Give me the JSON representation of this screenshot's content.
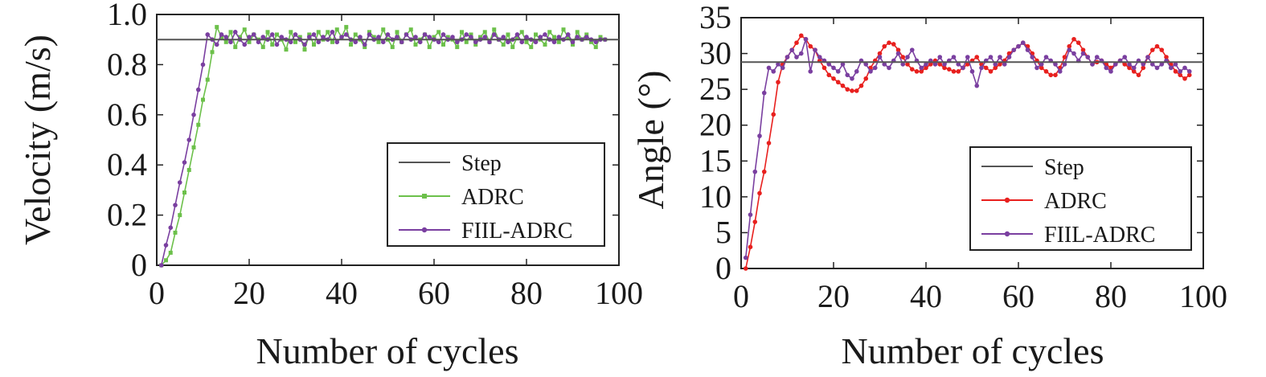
{
  "chart_data": [
    {
      "type": "line",
      "xlabel": "Number of cycles",
      "ylabel": "Velocity (m/s)",
      "xlim": [
        0,
        100
      ],
      "ylim": [
        0,
        1.0
      ],
      "xticks": [
        0,
        20,
        40,
        60,
        80,
        100
      ],
      "xtick_labels": [
        "0",
        "20",
        "40",
        "60",
        "80",
        "100"
      ],
      "yticks": [
        0,
        0.2,
        0.4,
        0.6,
        0.8,
        1.0
      ],
      "ytick_labels": [
        "0",
        "0.2",
        "0.4",
        "0.6",
        "0.8",
        "1.0"
      ],
      "grid": false,
      "legend_position": "lower-right",
      "legend": [
        "Step",
        "ADRC",
        "FIIL-ADRC"
      ],
      "series": [
        {
          "name": "Step",
          "color": "#555555",
          "marker": "none",
          "x": [
            0,
            100
          ],
          "y": [
            0.9,
            0.9
          ]
        },
        {
          "name": "ADRC",
          "color": "#6cc04a",
          "marker": "square",
          "x": [
            1,
            2,
            3,
            4,
            5,
            6,
            7,
            8,
            9,
            10,
            11,
            12,
            13,
            14,
            15,
            16,
            17,
            18,
            19,
            20,
            21,
            22,
            23,
            24,
            25,
            26,
            27,
            28,
            29,
            30,
            31,
            32,
            33,
            34,
            35,
            36,
            37,
            38,
            39,
            40,
            41,
            42,
            43,
            44,
            45,
            46,
            47,
            48,
            49,
            50,
            51,
            52,
            53,
            54,
            55,
            56,
            57,
            58,
            59,
            60,
            61,
            62,
            63,
            64,
            65,
            66,
            67,
            68,
            69,
            70,
            71,
            72,
            73,
            74,
            75,
            76,
            77,
            78,
            79,
            80,
            81,
            82,
            83,
            84,
            85,
            86,
            87,
            88,
            89,
            90,
            91,
            92,
            93,
            94,
            95,
            96,
            97
          ],
          "y": [
            0.0,
            0.02,
            0.05,
            0.13,
            0.2,
            0.29,
            0.38,
            0.47,
            0.56,
            0.66,
            0.74,
            0.85,
            0.95,
            0.91,
            0.89,
            0.93,
            0.87,
            0.91,
            0.94,
            0.89,
            0.92,
            0.9,
            0.87,
            0.93,
            0.88,
            0.92,
            0.9,
            0.86,
            0.93,
            0.89,
            0.91,
            0.86,
            0.92,
            0.88,
            0.93,
            0.9,
            0.93,
            0.89,
            0.94,
            0.91,
            0.95,
            0.88,
            0.92,
            0.9,
            0.87,
            0.93,
            0.91,
            0.89,
            0.94,
            0.9,
            0.87,
            0.93,
            0.89,
            0.92,
            0.94,
            0.88,
            0.9,
            0.92,
            0.87,
            0.91,
            0.93,
            0.88,
            0.91,
            0.9,
            0.87,
            0.93,
            0.89,
            0.92,
            0.88,
            0.91,
            0.93,
            0.89,
            0.94,
            0.9,
            0.88,
            0.92,
            0.87,
            0.91,
            0.93,
            0.89,
            0.87,
            0.92,
            0.9,
            0.88,
            0.93,
            0.91,
            0.89,
            0.94,
            0.91,
            0.88,
            0.93,
            0.9,
            0.92,
            0.89,
            0.87,
            0.91,
            0.9
          ]
        },
        {
          "name": "FIIL-ADRC",
          "color": "#7a3fa0",
          "marker": "circle",
          "x": [
            1,
            2,
            3,
            4,
            5,
            6,
            7,
            8,
            9,
            10,
            11,
            12,
            13,
            14,
            15,
            16,
            17,
            18,
            19,
            20,
            21,
            22,
            23,
            24,
            25,
            26,
            27,
            28,
            29,
            30,
            31,
            32,
            33,
            34,
            35,
            36,
            37,
            38,
            39,
            40,
            41,
            42,
            43,
            44,
            45,
            46,
            47,
            48,
            49,
            50,
            51,
            52,
            53,
            54,
            55,
            56,
            57,
            58,
            59,
            60,
            61,
            62,
            63,
            64,
            65,
            66,
            67,
            68,
            69,
            70,
            71,
            72,
            73,
            74,
            75,
            76,
            77,
            78,
            79,
            80,
            81,
            82,
            83,
            84,
            85,
            86,
            87,
            88,
            89,
            90,
            91,
            92,
            93,
            94,
            95,
            96,
            97
          ],
          "y": [
            0.0,
            0.08,
            0.15,
            0.24,
            0.33,
            0.41,
            0.5,
            0.6,
            0.7,
            0.8,
            0.92,
            0.9,
            0.88,
            0.92,
            0.91,
            0.89,
            0.93,
            0.9,
            0.88,
            0.91,
            0.92,
            0.89,
            0.91,
            0.9,
            0.92,
            0.88,
            0.91,
            0.9,
            0.89,
            0.92,
            0.9,
            0.88,
            0.91,
            0.92,
            0.89,
            0.91,
            0.9,
            0.93,
            0.89,
            0.91,
            0.92,
            0.9,
            0.89,
            0.91,
            0.88,
            0.92,
            0.9,
            0.91,
            0.89,
            0.92,
            0.9,
            0.91,
            0.89,
            0.92,
            0.9,
            0.91,
            0.89,
            0.92,
            0.91,
            0.9,
            0.89,
            0.92,
            0.9,
            0.91,
            0.89,
            0.9,
            0.92,
            0.91,
            0.89,
            0.9,
            0.91,
            0.89,
            0.92,
            0.9,
            0.91,
            0.89,
            0.9,
            0.92,
            0.89,
            0.91,
            0.9,
            0.89,
            0.91,
            0.92,
            0.9,
            0.89,
            0.91,
            0.9,
            0.92,
            0.89,
            0.91,
            0.9,
            0.91,
            0.9,
            0.89,
            0.9,
            0.9
          ]
        }
      ]
    },
    {
      "type": "line",
      "xlabel": "Number of cycles",
      "ylabel": "Angle (°)",
      "xlim": [
        0,
        100
      ],
      "ylim": [
        0,
        35
      ],
      "xticks": [
        0,
        20,
        40,
        60,
        80,
        100
      ],
      "xtick_labels": [
        "0",
        "20",
        "40",
        "60",
        "80",
        "100"
      ],
      "yticks": [
        0,
        5,
        10,
        15,
        20,
        25,
        30,
        35
      ],
      "ytick_labels": [
        "0",
        "5",
        "10",
        "15",
        "20",
        "25",
        "30",
        "35"
      ],
      "grid": false,
      "legend_position": "lower-right",
      "legend": [
        "Step",
        "ADRC",
        "FIIL-ADRC"
      ],
      "series": [
        {
          "name": "Step",
          "color": "#555555",
          "marker": "none",
          "x": [
            0,
            100
          ],
          "y": [
            28.8,
            28.8
          ]
        },
        {
          "name": "ADRC",
          "color": "#e8201e",
          "marker": "circle",
          "x": [
            1,
            2,
            3,
            4,
            5,
            6,
            7,
            8,
            9,
            10,
            11,
            12,
            13,
            14,
            15,
            16,
            17,
            18,
            19,
            20,
            21,
            22,
            23,
            24,
            25,
            26,
            27,
            28,
            29,
            30,
            31,
            32,
            33,
            34,
            35,
            36,
            37,
            38,
            39,
            40,
            41,
            42,
            43,
            44,
            45,
            46,
            47,
            48,
            49,
            50,
            51,
            52,
            53,
            54,
            55,
            56,
            57,
            58,
            59,
            60,
            61,
            62,
            63,
            64,
            65,
            66,
            67,
            68,
            69,
            70,
            71,
            72,
            73,
            74,
            75,
            76,
            77,
            78,
            79,
            80,
            81,
            82,
            83,
            84,
            85,
            86,
            87,
            88,
            89,
            90,
            91,
            92,
            93,
            94,
            95,
            96,
            97
          ],
          "y": [
            0.0,
            3.0,
            6.5,
            10.5,
            13.5,
            17.5,
            21.5,
            26.0,
            28.5,
            29.5,
            30.5,
            31.5,
            32.5,
            32.0,
            31.0,
            30.5,
            29.0,
            28.0,
            27.0,
            26.5,
            26.0,
            25.5,
            25.0,
            24.8,
            24.8,
            25.5,
            26.5,
            28.0,
            29.0,
            30.0,
            31.0,
            31.5,
            31.3,
            30.5,
            29.5,
            28.5,
            27.8,
            27.5,
            27.5,
            28.0,
            28.5,
            29.0,
            28.5,
            28.0,
            27.8,
            27.5,
            27.5,
            28.0,
            28.5,
            29.0,
            29.5,
            28.5,
            28.0,
            27.5,
            28.0,
            28.5,
            29.0,
            30.0,
            30.5,
            31.0,
            31.5,
            31.0,
            30.0,
            29.0,
            28.0,
            27.5,
            27.0,
            27.0,
            28.0,
            29.5,
            31.0,
            32.0,
            31.5,
            30.5,
            29.5,
            28.5,
            28.8,
            29.0,
            28.5,
            28.0,
            28.5,
            29.0,
            28.5,
            28.0,
            27.5,
            27.0,
            28.0,
            29.5,
            30.5,
            31.0,
            30.5,
            29.5,
            28.5,
            27.5,
            27.0,
            26.5,
            27.0
          ]
        },
        {
          "name": "FIIL-ADRC",
          "color": "#7a3fa0",
          "marker": "circle",
          "x": [
            1,
            2,
            3,
            4,
            5,
            6,
            7,
            8,
            9,
            10,
            11,
            12,
            13,
            14,
            15,
            16,
            17,
            18,
            19,
            20,
            21,
            22,
            23,
            24,
            25,
            26,
            27,
            28,
            29,
            30,
            31,
            32,
            33,
            34,
            35,
            36,
            37,
            38,
            39,
            40,
            41,
            42,
            43,
            44,
            45,
            46,
            47,
            48,
            49,
            50,
            51,
            52,
            53,
            54,
            55,
            56,
            57,
            58,
            59,
            60,
            61,
            62,
            63,
            64,
            65,
            66,
            67,
            68,
            69,
            70,
            71,
            72,
            73,
            74,
            75,
            76,
            77,
            78,
            79,
            80,
            81,
            82,
            83,
            84,
            85,
            86,
            87,
            88,
            89,
            90,
            91,
            92,
            93,
            94,
            95,
            96,
            97
          ],
          "y": [
            1.5,
            7.5,
            13.5,
            18.5,
            24.5,
            28.0,
            27.5,
            28.5,
            28.0,
            29.5,
            30.5,
            29.5,
            30.0,
            32.0,
            27.5,
            30.5,
            29.5,
            29.0,
            28.5,
            28.0,
            27.5,
            28.5,
            27.0,
            26.5,
            27.5,
            29.0,
            28.5,
            27.5,
            28.0,
            29.5,
            28.5,
            28.0,
            29.0,
            30.0,
            28.5,
            29.5,
            30.5,
            29.0,
            28.0,
            28.5,
            29.0,
            28.5,
            29.5,
            28.5,
            29.0,
            29.5,
            28.5,
            28.0,
            29.5,
            27.5,
            25.5,
            28.0,
            29.0,
            29.5,
            28.5,
            29.5,
            28.5,
            29.5,
            30.5,
            31.0,
            31.5,
            30.5,
            29.5,
            28.0,
            28.5,
            29.5,
            29.0,
            28.5,
            27.5,
            28.5,
            30.5,
            30.0,
            29.0,
            30.0,
            29.5,
            28.5,
            29.5,
            29.0,
            28.0,
            27.5,
            28.5,
            29.0,
            29.5,
            28.5,
            28.0,
            29.0,
            28.5,
            29.5,
            28.5,
            28.0,
            28.5,
            29.0,
            28.0,
            28.5,
            27.5,
            28.0,
            27.5
          ]
        }
      ]
    }
  ]
}
